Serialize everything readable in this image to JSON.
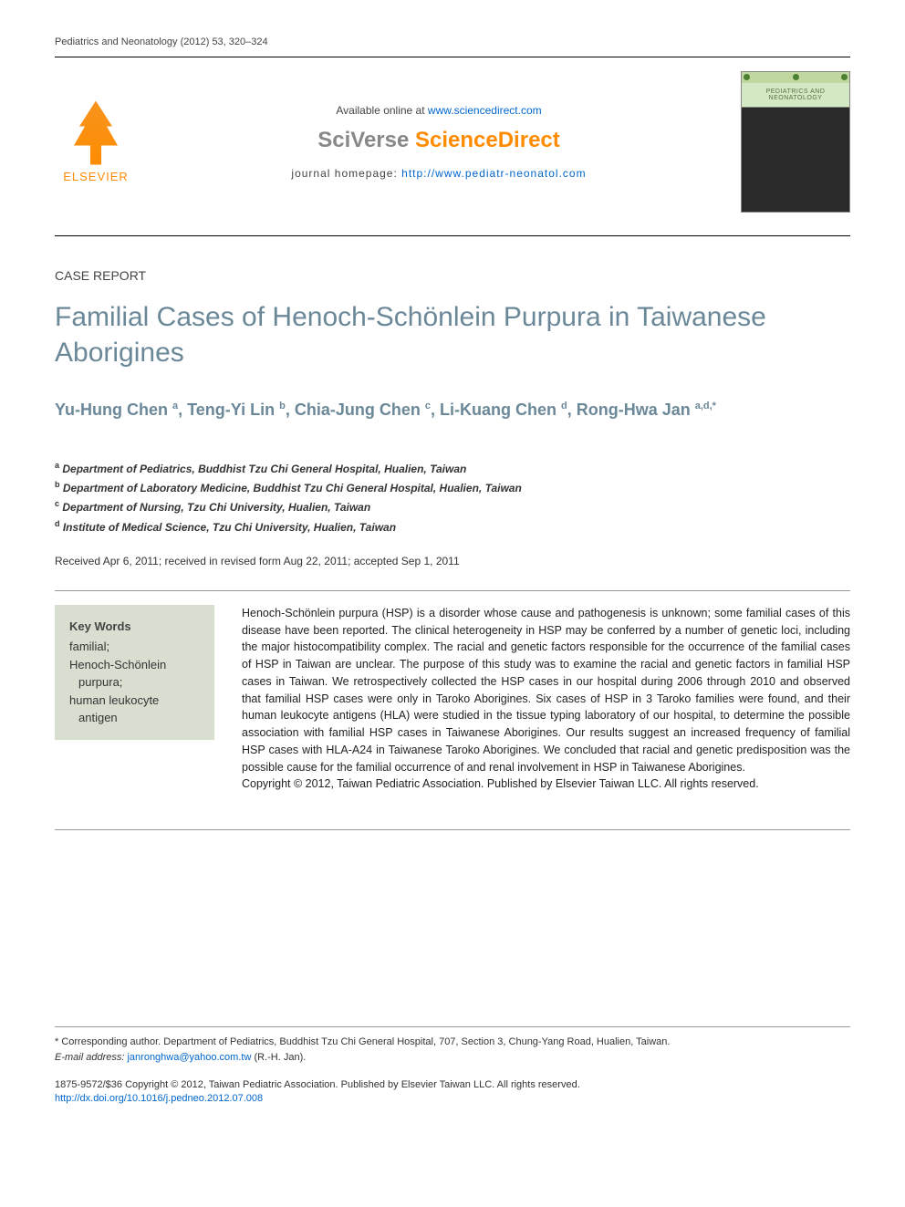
{
  "citation": "Pediatrics and Neonatology (2012) 53, 320–324",
  "header": {
    "available_prefix": "Available online at ",
    "available_url": "www.sciencedirect.com",
    "sciverse_gray": "SciVerse ",
    "sciverse_orange": "ScienceDirect",
    "homepage_prefix": "journal homepage: ",
    "homepage_url": "http://www.pediatr-neonatol.com",
    "publisher": "ELSEVIER",
    "cover_title": "PEDIATRICS AND NEONATOLOGY"
  },
  "article": {
    "type": "CASE REPORT",
    "title": "Familial Cases of Henoch-Schönlein Purpura in Taiwanese Aborigines"
  },
  "authors": {
    "a1_name": "Yu-Hung Chen ",
    "a1_sup": "a",
    "a2_name": ", Teng-Yi Lin ",
    "a2_sup": "b",
    "a3_name": ", Chia-Jung Chen ",
    "a3_sup": "c",
    "a4_name": ", Li-Kuang Chen ",
    "a4_sup": "d",
    "a5_name": ", Rong-Hwa Jan ",
    "a5_sup": "a,d,*"
  },
  "affiliations": {
    "a": "Department of Pediatrics, Buddhist Tzu Chi General Hospital, Hualien, Taiwan",
    "b": "Department of Laboratory Medicine, Buddhist Tzu Chi General Hospital, Hualien, Taiwan",
    "c": "Department of Nursing, Tzu Chi University, Hualien, Taiwan",
    "d": "Institute of Medical Science, Tzu Chi University, Hualien, Taiwan"
  },
  "dates": "Received Apr 6, 2011; received in revised form Aug 22, 2011; accepted Sep 1, 2011",
  "keywords": {
    "title": "Key Words",
    "k1": "familial;",
    "k2a": "Henoch-Schönlein",
    "k2b": "purpura;",
    "k3a": "human leukocyte",
    "k3b": "antigen"
  },
  "abstract": {
    "body": "Henoch-Schönlein purpura (HSP) is a disorder whose cause and pathogenesis is unknown; some familial cases of this disease have been reported. The clinical heterogeneity in HSP may be conferred by a number of genetic loci, including the major histocompatibility complex. The racial and genetic factors responsible for the occurrence of the familial cases of HSP in Taiwan are unclear. The purpose of this study was to examine the racial and genetic factors in familial HSP cases in Taiwan. We retrospectively collected the HSP cases in our hospital during 2006 through 2010 and observed that familial HSP cases were only in Taroko Aborigines. Six cases of HSP in 3 Taroko families were found, and their human leukocyte antigens (HLA) were studied in the tissue typing laboratory of our hospital, to determine the possible association with familial HSP cases in Taiwanese Aborigines. Our results suggest an increased frequency of familial HSP cases with HLA-A24 in Taiwanese Taroko Aborigines. We concluded that racial and genetic predisposition was the possible cause for the familial occurrence of and renal involvement in HSP in Taiwanese Aborigines.",
    "copyright": "Copyright © 2012, Taiwan Pediatric Association. Published by Elsevier Taiwan LLC. All rights reserved."
  },
  "footnote": {
    "corresponding": "* Corresponding author. Department of Pediatrics, Buddhist Tzu Chi General Hospital, 707, Section 3, Chung-Yang Road, Hualien, Taiwan.",
    "email_label": "E-mail address: ",
    "email": "janronghwa@yahoo.com.tw",
    "email_suffix": " (R.-H. Jan)."
  },
  "bottom": {
    "issn_copyright": "1875-9572/$36 Copyright © 2012, Taiwan Pediatric Association. Published by Elsevier Taiwan LLC. All rights reserved.",
    "doi": "http://dx.doi.org/10.1016/j.pedneo.2012.07.008"
  }
}
